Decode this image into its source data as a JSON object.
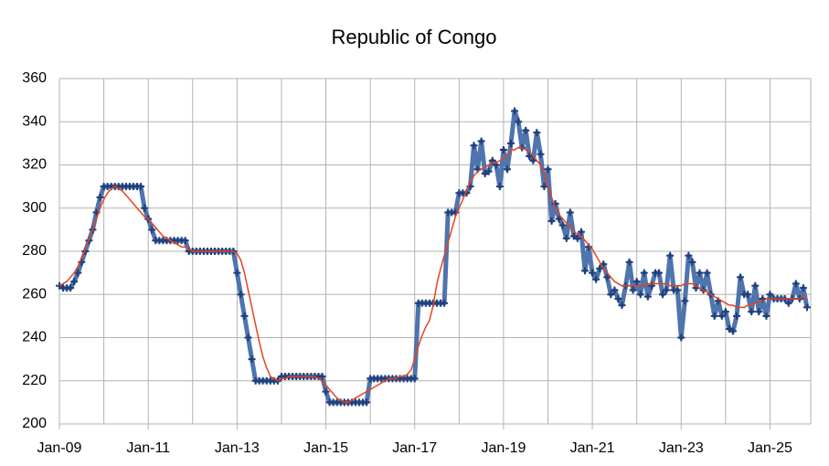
{
  "chart_data": {
    "type": "line",
    "title": "Republic of Congo",
    "x": [
      "2009-01",
      "2009-02",
      "2009-03",
      "2009-04",
      "2009-05",
      "2009-06",
      "2009-07",
      "2009-08",
      "2009-09",
      "2009-10",
      "2009-11",
      "2009-12",
      "2010-01",
      "2010-02",
      "2010-03",
      "2010-04",
      "2010-05",
      "2010-06",
      "2010-07",
      "2010-08",
      "2010-09",
      "2010-10",
      "2010-11",
      "2010-12",
      "2011-01",
      "2011-02",
      "2011-03",
      "2011-04",
      "2011-05",
      "2011-06",
      "2011-07",
      "2011-08",
      "2011-09",
      "2011-10",
      "2011-11",
      "2011-12",
      "2012-01",
      "2012-02",
      "2012-03",
      "2012-04",
      "2012-05",
      "2012-06",
      "2012-07",
      "2012-08",
      "2012-09",
      "2012-10",
      "2012-11",
      "2012-12",
      "2013-01",
      "2013-02",
      "2013-03",
      "2013-04",
      "2013-05",
      "2013-06",
      "2013-07",
      "2013-08",
      "2013-09",
      "2013-10",
      "2013-11",
      "2013-12",
      "2014-01",
      "2014-02",
      "2014-03",
      "2014-04",
      "2014-05",
      "2014-06",
      "2014-07",
      "2014-08",
      "2014-09",
      "2014-10",
      "2014-11",
      "2014-12",
      "2015-01",
      "2015-02",
      "2015-03",
      "2015-04",
      "2015-05",
      "2015-06",
      "2015-07",
      "2015-08",
      "2015-09",
      "2015-10",
      "2015-11",
      "2015-12",
      "2016-01",
      "2016-02",
      "2016-03",
      "2016-04",
      "2016-05",
      "2016-06",
      "2016-07",
      "2016-08",
      "2016-09",
      "2016-10",
      "2016-11",
      "2016-12",
      "2017-01",
      "2017-02",
      "2017-03",
      "2017-04",
      "2017-05",
      "2017-06",
      "2017-07",
      "2017-08",
      "2017-09",
      "2017-10",
      "2017-11",
      "2017-12",
      "2018-01",
      "2018-02",
      "2018-03",
      "2018-04",
      "2018-05",
      "2018-06",
      "2018-07",
      "2018-08",
      "2018-09",
      "2018-10",
      "2018-11",
      "2018-12",
      "2019-01",
      "2019-02",
      "2019-03",
      "2019-04",
      "2019-05",
      "2019-06",
      "2019-07",
      "2019-08",
      "2019-09",
      "2019-10",
      "2019-11",
      "2019-12",
      "2020-01",
      "2020-02",
      "2020-03",
      "2020-04",
      "2020-05",
      "2020-06",
      "2020-07",
      "2020-08",
      "2020-09",
      "2020-10",
      "2020-11",
      "2020-12",
      "2021-01",
      "2021-02",
      "2021-03",
      "2021-04",
      "2021-05",
      "2021-06",
      "2021-07",
      "2021-08",
      "2021-09",
      "2021-10",
      "2021-11",
      "2021-12",
      "2022-01",
      "2022-02",
      "2022-03",
      "2022-04",
      "2022-05",
      "2022-06",
      "2022-07",
      "2022-08",
      "2022-09",
      "2022-10",
      "2022-11",
      "2022-12",
      "2023-01",
      "2023-02",
      "2023-03",
      "2023-04",
      "2023-05",
      "2023-06",
      "2023-07",
      "2023-08",
      "2023-09",
      "2023-10",
      "2023-11",
      "2023-12",
      "2024-01",
      "2024-02",
      "2024-03",
      "2024-04",
      "2024-05",
      "2024-06",
      "2024-07",
      "2024-08",
      "2024-09",
      "2024-10",
      "2024-11",
      "2024-12",
      "2025-01",
      "2025-02",
      "2025-03",
      "2025-04",
      "2025-05",
      "2025-06",
      "2025-07",
      "2025-08",
      "2025-09",
      "2025-10",
      "2025-11"
    ],
    "series": [
      {
        "color": "#4f74ae",
        "values": [
          264,
          263,
          263,
          263,
          266,
          270,
          275,
          280,
          285,
          290,
          298,
          305,
          310,
          310,
          310,
          310,
          310,
          310,
          310,
          310,
          310,
          310,
          310,
          300,
          295,
          290,
          285,
          285,
          285,
          285,
          285,
          285,
          285,
          285,
          285,
          280,
          280,
          280,
          280,
          280,
          280,
          280,
          280,
          280,
          280,
          280,
          280,
          280,
          270,
          260,
          250,
          240,
          230,
          220,
          220,
          220,
          220,
          220,
          220,
          220,
          222,
          222,
          222,
          222,
          222,
          222,
          222,
          222,
          222,
          222,
          222,
          222,
          215,
          210,
          210,
          210,
          210,
          210,
          210,
          210,
          210,
          210,
          210,
          210,
          221,
          221,
          221,
          221,
          221,
          221,
          221,
          221,
          221,
          221,
          221,
          221,
          221,
          256,
          256,
          256,
          256,
          256,
          256,
          256,
          256,
          298,
          298,
          298,
          307,
          307,
          307,
          310,
          329,
          318,
          331,
          316,
          317,
          322,
          320,
          310,
          327,
          318,
          330,
          345,
          340,
          328,
          336,
          324,
          322,
          335,
          325,
          310,
          318,
          294,
          302,
          295,
          292,
          286,
          298,
          287,
          286,
          289,
          271,
          282,
          270,
          267,
          272,
          274,
          268,
          260,
          262,
          258,
          255,
          264,
          275,
          262,
          266,
          260,
          270,
          259,
          264,
          270,
          270,
          260,
          262,
          278,
          262,
          262,
          240,
          257,
          278,
          275,
          263,
          270,
          262,
          270,
          260,
          250,
          257,
          250,
          252,
          244,
          243,
          250,
          268,
          260,
          260,
          252,
          264,
          252,
          258,
          250,
          260,
          258,
          258,
          258,
          258,
          256,
          258,
          265,
          258,
          263,
          254
        ]
      },
      {
        "color": "#e8431e",
        "values": [
          264,
          265,
          266,
          268,
          270,
          273,
          277,
          281,
          286,
          290,
          295,
          300,
          304,
          307,
          309,
          310,
          309,
          308,
          306,
          304,
          302,
          300,
          298,
          296,
          295,
          293,
          291,
          289,
          287,
          286,
          285,
          284,
          283,
          282,
          282,
          281,
          280,
          280,
          280,
          280,
          280,
          280,
          280,
          280,
          280,
          280,
          280,
          280,
          279,
          276,
          270,
          262,
          254,
          246,
          238,
          231,
          226,
          222,
          221,
          220,
          221,
          221,
          222,
          222,
          222,
          222,
          222,
          222,
          222,
          222,
          221,
          220,
          218,
          216,
          214,
          212,
          211,
          210,
          210,
          211,
          212,
          213,
          214,
          215,
          216,
          217,
          218,
          219,
          220,
          221,
          221,
          221,
          222,
          222,
          223,
          225,
          230,
          236,
          241,
          245,
          248,
          255,
          265,
          272,
          278,
          284,
          290,
          296,
          300,
          304,
          308,
          312,
          315,
          317,
          318,
          319,
          320,
          321,
          321,
          322,
          323,
          325,
          327,
          327,
          328,
          328,
          327,
          326,
          324,
          322,
          320,
          316,
          310,
          305,
          300,
          297,
          295,
          293,
          291,
          289,
          288,
          287,
          285,
          283,
          281,
          278,
          275,
          272,
          270,
          268,
          266,
          265,
          264,
          264,
          264,
          264,
          264,
          264,
          264,
          265,
          265,
          265,
          265,
          265,
          265,
          264,
          264,
          264,
          264,
          265,
          265,
          265,
          264,
          263,
          262,
          261,
          260,
          259,
          258,
          257,
          256,
          255,
          255,
          254,
          254,
          254,
          255,
          255,
          256,
          257,
          257,
          258,
          258,
          258,
          258,
          258,
          258,
          258,
          258,
          258,
          258,
          259,
          259
        ]
      }
    ],
    "xlim": [
      "2009-01",
      "2025-12"
    ],
    "xticks": [
      {
        "value": "2009-01",
        "label": "Jan-09"
      },
      {
        "value": "2011-01",
        "label": "Jan-11"
      },
      {
        "value": "2013-01",
        "label": "Jan-13"
      },
      {
        "value": "2015-01",
        "label": "Jan-15"
      },
      {
        "value": "2017-01",
        "label": "Jan-17"
      },
      {
        "value": "2019-01",
        "label": "Jan-19"
      },
      {
        "value": "2021-01",
        "label": "Jan-21"
      },
      {
        "value": "2023-01",
        "label": "Jan-23"
      },
      {
        "value": "2025-01",
        "label": "Jan-25"
      }
    ],
    "xminorticks": [
      "2010-01",
      "2012-01",
      "2014-01",
      "2016-01",
      "2018-01",
      "2020-01",
      "2022-01",
      "2024-01"
    ],
    "ylim": [
      200,
      360
    ],
    "yticks": [
      200,
      220,
      240,
      260,
      280,
      300,
      320,
      340,
      360
    ],
    "grid": true
  }
}
